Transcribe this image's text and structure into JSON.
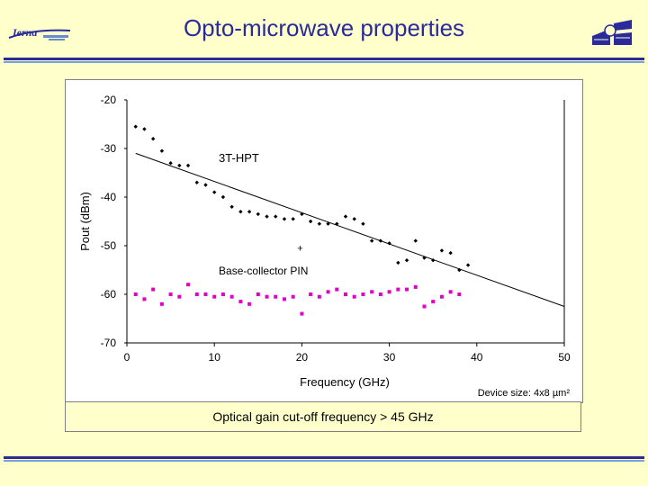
{
  "title": "Opto-microwave properties",
  "logo_left_text": "Ierna",
  "caption": "Optical gain cut-off frequency > 45 GHz",
  "colors": {
    "title": "#2a2a9c",
    "hpt": "#000000",
    "pin": "#e000c8",
    "background": "#ffffcc"
  },
  "chart_data": {
    "type": "scatter",
    "xlabel": "Frequency (GHz)",
    "ylabel": "Pout (dBm)",
    "xlim": [
      0,
      50
    ],
    "ylim": [
      -70,
      -20
    ],
    "xticks": [
      0,
      10,
      20,
      30,
      40,
      50
    ],
    "yticks": [
      -20,
      -30,
      -40,
      -50,
      -60,
      -70
    ],
    "note": "Device size: 4x8 µm²",
    "annotations": [
      {
        "text": "3T-HPT",
        "x": 10.5,
        "y": -32
      },
      {
        "text": "+",
        "x": 19.8,
        "y": -50.5
      },
      {
        "text": "Base-collector PIN",
        "x": 10.5,
        "y": -55.2
      }
    ],
    "series": [
      {
        "name": "3T-HPT",
        "marker": "diamond",
        "x": [
          1,
          2,
          3,
          4,
          5,
          6,
          7,
          8,
          9,
          10,
          11,
          12,
          13,
          14,
          15,
          16,
          17,
          18,
          19,
          20,
          21,
          22,
          23,
          24,
          25,
          26,
          27,
          28,
          29,
          30,
          31,
          32,
          33,
          34,
          35,
          36,
          37,
          38,
          39
        ],
        "y": [
          -25.5,
          -26,
          -28,
          -30.5,
          -33,
          -33.5,
          -33.5,
          -37,
          -37.5,
          -39,
          -40,
          -42,
          -43,
          -43,
          -43.5,
          -44,
          -44,
          -44.5,
          -44.5,
          -43.5,
          -45,
          -45.5,
          -45.5,
          -45.5,
          -44,
          -44.5,
          -45.5,
          -49,
          -49,
          -49.5,
          -53.5,
          -53,
          -49,
          -52.5,
          -53,
          -51,
          -51.5,
          -55,
          -54
        ]
      },
      {
        "name": "3T-HPT trend",
        "type": "line",
        "x": [
          1,
          50
        ],
        "y": [
          -31,
          -62.5
        ]
      },
      {
        "name": "Base-collector PIN",
        "marker": "square",
        "x": [
          1,
          2,
          3,
          4,
          5,
          6,
          7,
          8,
          9,
          10,
          11,
          12,
          13,
          14,
          15,
          16,
          17,
          18,
          19,
          20,
          21,
          22,
          23,
          24,
          25,
          26,
          27,
          28,
          29,
          30,
          31,
          32,
          33,
          34,
          35,
          36,
          37,
          38
        ],
        "y": [
          -60,
          -61,
          -59,
          -62,
          -60,
          -60.5,
          -58,
          -60,
          -60,
          -60.5,
          -60,
          -60.5,
          -61.5,
          -62,
          -60,
          -60.5,
          -60.5,
          -61,
          -60.5,
          -64,
          -60,
          -60.5,
          -59.5,
          -59,
          -60,
          -60.5,
          -60,
          -59.5,
          -60,
          -59.5,
          -59,
          -59,
          -58.5,
          -62.5,
          -61.5,
          -60.5,
          -59.5,
          -60
        ]
      }
    ]
  }
}
